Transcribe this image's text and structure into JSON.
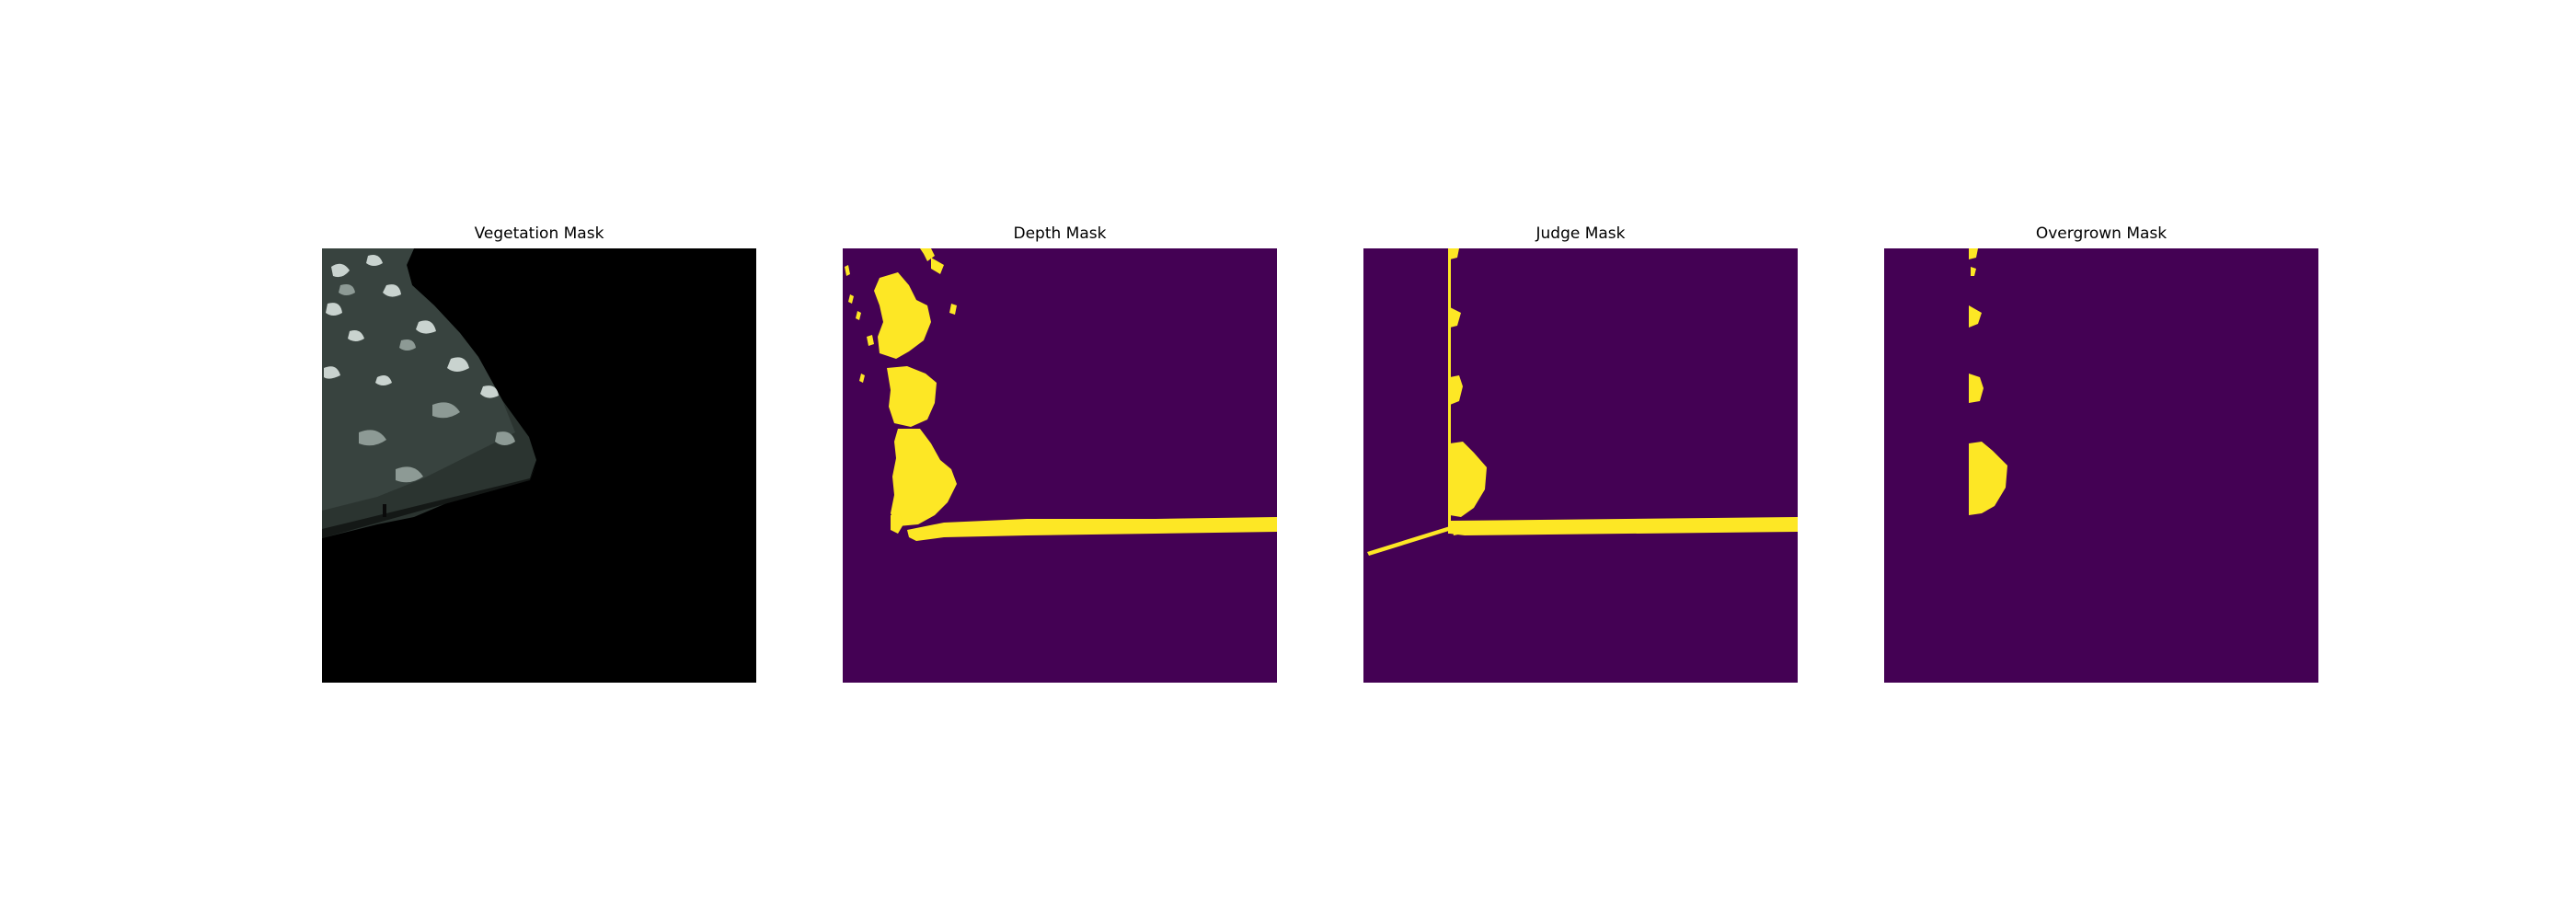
{
  "figure": {
    "panels": [
      {
        "title": "Vegetation Mask",
        "kind": "rgb-masked-image"
      },
      {
        "title": "Depth Mask",
        "kind": "binary-mask"
      },
      {
        "title": "Judge Mask",
        "kind": "binary-mask"
      },
      {
        "title": "Overgrown Mask",
        "kind": "binary-mask"
      }
    ],
    "colors": {
      "mask_on": "#fde725",
      "mask_off": "#440154",
      "background": "#000000",
      "vegetation_dark": "#2b3430",
      "vegetation_mid": "#5b6662",
      "vegetation_light": "#c9d3cf"
    }
  }
}
